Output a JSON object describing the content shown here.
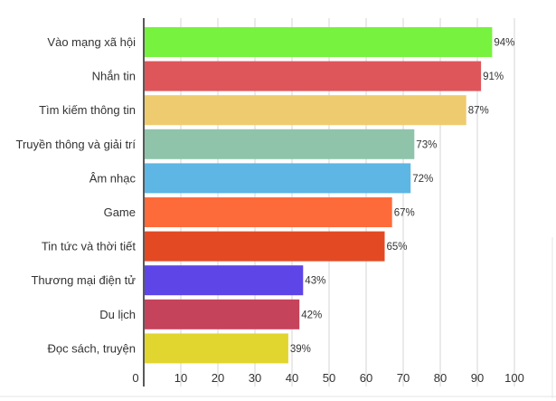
{
  "chart_data": {
    "type": "bar",
    "orientation": "horizontal",
    "categories": [
      "Vào mạng xã hội",
      "Nhắn tin",
      "Tìm kiếm thông tin",
      "Truyền thông và giải trí",
      "Âm nhạc",
      "Game",
      "Tin tức và thời tiết",
      "Thương mại điện tử",
      "Du lịch",
      "Đọc sách, truyện"
    ],
    "values": [
      94,
      91,
      87,
      73,
      72,
      67,
      65,
      43,
      42,
      39
    ],
    "value_labels": [
      "94%",
      "91%",
      "87%",
      "73%",
      "72%",
      "67%",
      "65%",
      "43%",
      "42%",
      "39%"
    ],
    "bar_colors": [
      "#76f23f",
      "#de565a",
      "#eecb6e",
      "#8fc4ab",
      "#5db6e3",
      "#fe6b3a",
      "#e34a24",
      "#5d45e8",
      "#c6435c",
      "#e1d52f"
    ],
    "xlim": [
      0,
      100
    ],
    "xticks": [
      "0",
      "10",
      "20",
      "30",
      "40",
      "50",
      "60",
      "70",
      "80",
      "90",
      "100"
    ],
    "grid": true,
    "legend": false
  }
}
